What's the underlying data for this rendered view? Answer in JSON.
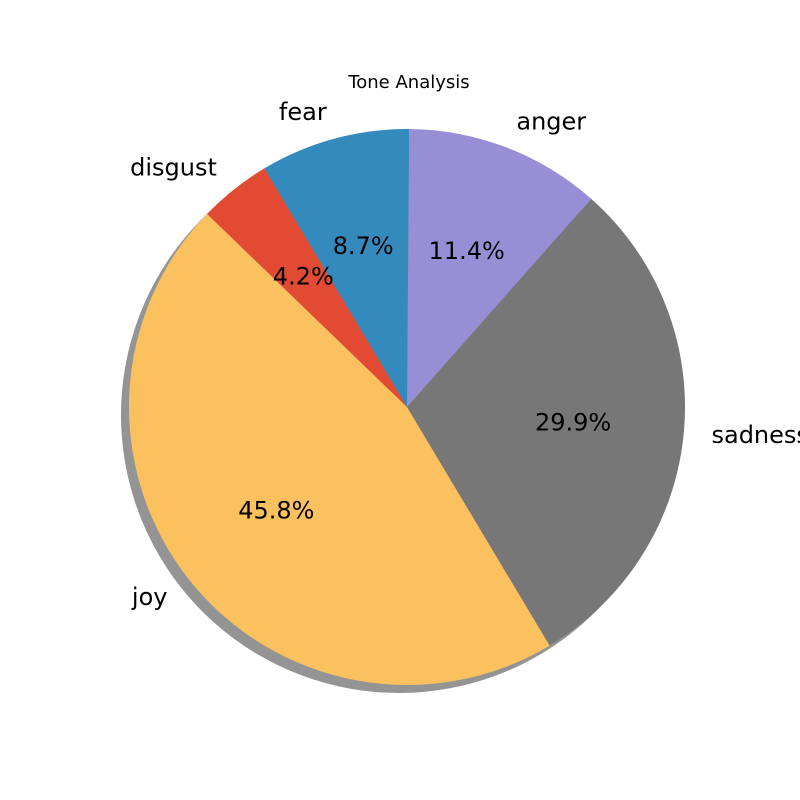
{
  "chart_data": {
    "type": "pie",
    "title": "Tone Analysis",
    "categories": [
      "joy",
      "sadness",
      "anger",
      "fear",
      "disgust"
    ],
    "values": [
      45.8,
      29.9,
      11.4,
      8.7,
      4.2
    ],
    "percent_labels": [
      "45.8%",
      "29.9%",
      "11.4%",
      "8.7%",
      "4.2%"
    ],
    "colors": [
      "#FBC15E",
      "#777777",
      "#988ED5",
      "#348ABD",
      "#E24A33"
    ],
    "shadow": true,
    "start_angle_deg": 136,
    "direction": "counterclockwise"
  }
}
